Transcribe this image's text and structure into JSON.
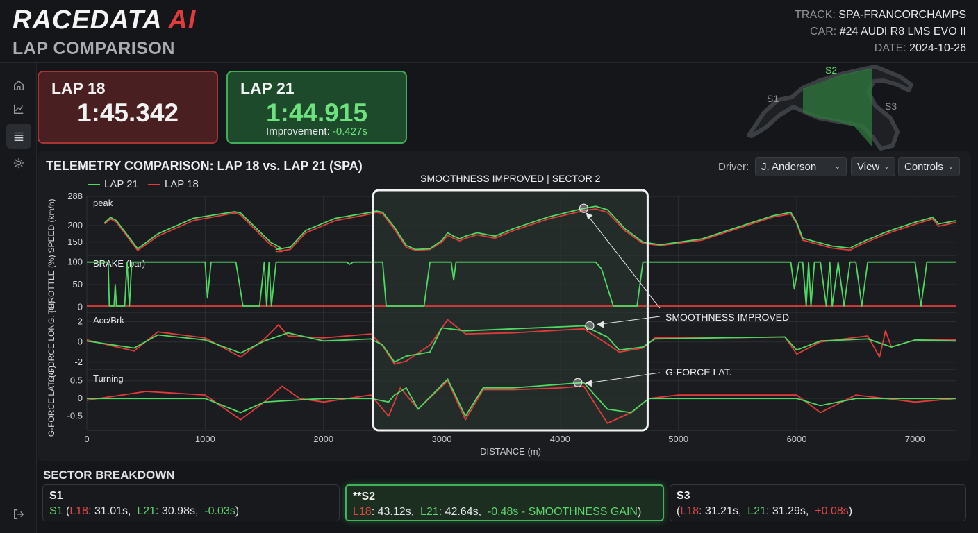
{
  "app": {
    "brand_main": "RACEDATA",
    "brand_accent": "AI",
    "page_title": "LAP COMPARISON"
  },
  "meta": {
    "track_label": "TRACK:",
    "track": "SPA-FRANCORCHAMPS",
    "car_label": "CAR:",
    "car": "#24 AUDI R8 LMS EVO II",
    "date_label": "DATE:",
    "date": "2024-10-26"
  },
  "sidebar": {
    "items": [
      {
        "icon": "home-icon"
      },
      {
        "icon": "chart-icon"
      },
      {
        "icon": "list-icon",
        "active": true
      },
      {
        "icon": "gear-icon"
      },
      {
        "icon": "logout-icon"
      }
    ]
  },
  "laps": {
    "a": {
      "label": "LAP 18",
      "time": "1:45.342"
    },
    "b": {
      "label": "LAP 21",
      "time": "1:44.915",
      "improvement_label": "Improvement:",
      "improvement": "-0.427s"
    }
  },
  "track_map": {
    "s1": "S1",
    "s2": "S2",
    "s3": "S3"
  },
  "telemetry": {
    "title": "TELEMETRY COMPARISON: LAP 18 vs. LAP 21 (SPA)",
    "driver_label": "Driver:",
    "driver": "J. Anderson",
    "view_label": "View",
    "controls_label": "Controls",
    "highlight_title": "SMOOTHNESS IMPROVED | SECTOR 2",
    "annot_smooth": "SMOOTHNESS IMPROVED",
    "annot_glat": "G-FORCE LAT."
  },
  "chart_data": {
    "type": "line",
    "xlabel": "DISTANCE (m)",
    "xlim": [
      0,
      7350
    ],
    "xticks": [
      0,
      1000,
      2000,
      3000,
      4000,
      5000,
      6000,
      7000
    ],
    "highlight_x": [
      2420,
      4740
    ],
    "legend": [
      "LAP 21",
      "LAP 18"
    ],
    "colors": {
      "lap21": "#4fd862",
      "lap18": "#e23b3b"
    },
    "panels": [
      {
        "ylabel": "SPEED (km/h)",
        "tag": "peak",
        "ylim": [
          110,
          288
        ],
        "yticks": [
          150,
          200,
          288
        ],
        "lap21": [
          [
            150,
            208
          ],
          [
            200,
            225
          ],
          [
            250,
            215
          ],
          [
            430,
            130
          ],
          [
            600,
            175
          ],
          [
            900,
            222
          ],
          [
            1250,
            242
          ],
          [
            1300,
            238
          ],
          [
            1500,
            168
          ],
          [
            1560,
            148
          ],
          [
            1580,
            145
          ],
          [
            1650,
            130
          ],
          [
            1600,
            128
          ],
          [
            1720,
            135
          ],
          [
            1850,
            185
          ],
          [
            2100,
            222
          ],
          [
            2400,
            240
          ],
          [
            2450,
            244
          ],
          [
            2500,
            240
          ],
          [
            2600,
            195
          ],
          [
            2700,
            140
          ],
          [
            2780,
            128
          ],
          [
            2900,
            130
          ],
          [
            3000,
            155
          ],
          [
            3050,
            178
          ],
          [
            3100,
            168
          ],
          [
            3150,
            160
          ],
          [
            3200,
            168
          ],
          [
            3300,
            178
          ],
          [
            3450,
            168
          ],
          [
            3600,
            190
          ],
          [
            3900,
            226
          ],
          [
            4200,
            252
          ],
          [
            4300,
            258
          ],
          [
            4400,
            248
          ],
          [
            4550,
            190
          ],
          [
            4700,
            150
          ],
          [
            4850,
            142
          ],
          [
            5200,
            160
          ],
          [
            5800,
            230
          ],
          [
            5950,
            240
          ],
          [
            6000,
            210
          ],
          [
            6050,
            162
          ],
          [
            6300,
            138
          ],
          [
            6450,
            132
          ],
          [
            6550,
            150
          ],
          [
            6750,
            180
          ],
          [
            7000,
            210
          ],
          [
            7150,
            225
          ],
          [
            7200,
            205
          ],
          [
            7350,
            215
          ]
        ],
        "lap18": [
          [
            150,
            205
          ],
          [
            200,
            220
          ],
          [
            250,
            210
          ],
          [
            430,
            125
          ],
          [
            600,
            168
          ],
          [
            900,
            215
          ],
          [
            1250,
            238
          ],
          [
            1300,
            232
          ],
          [
            1500,
            160
          ],
          [
            1560,
            140
          ],
          [
            1580,
            138
          ],
          [
            1650,
            122
          ],
          [
            1600,
            122
          ],
          [
            1720,
            128
          ],
          [
            1850,
            178
          ],
          [
            2100,
            215
          ],
          [
            2400,
            235
          ],
          [
            2450,
            240
          ],
          [
            2500,
            236
          ],
          [
            2600,
            188
          ],
          [
            2700,
            134
          ],
          [
            2780,
            125
          ],
          [
            2900,
            128
          ],
          [
            3000,
            150
          ],
          [
            3050,
            170
          ],
          [
            3100,
            162
          ],
          [
            3150,
            154
          ],
          [
            3200,
            162
          ],
          [
            3300,
            172
          ],
          [
            3450,
            162
          ],
          [
            3600,
            184
          ],
          [
            3900,
            220
          ],
          [
            4200,
            245
          ],
          [
            4300,
            250
          ],
          [
            4400,
            240
          ],
          [
            4550,
            184
          ],
          [
            4700,
            146
          ],
          [
            4850,
            140
          ],
          [
            5200,
            156
          ],
          [
            5800,
            226
          ],
          [
            5950,
            235
          ],
          [
            6000,
            205
          ],
          [
            6050,
            156
          ],
          [
            6300,
            132
          ],
          [
            6450,
            126
          ],
          [
            6550,
            144
          ],
          [
            6750,
            174
          ],
          [
            7000,
            204
          ],
          [
            7150,
            220
          ],
          [
            7200,
            198
          ],
          [
            7350,
            210
          ]
        ]
      },
      {
        "ylabel": "THROTTLE (%)",
        "tag": "BRAKE (bar)",
        "ylim": [
          -12,
          112
        ],
        "yticks": [
          0,
          50,
          100
        ],
        "lap21": [
          [
            0,
            100
          ],
          [
            180,
            100
          ],
          [
            190,
            2
          ],
          [
            230,
            2
          ],
          [
            240,
            50
          ],
          [
            250,
            2
          ],
          [
            320,
            2
          ],
          [
            340,
            100
          ],
          [
            360,
            2
          ],
          [
            380,
            100
          ],
          [
            1000,
            100
          ],
          [
            1020,
            20
          ],
          [
            1050,
            100
          ],
          [
            1260,
            100
          ],
          [
            1320,
            2
          ],
          [
            1460,
            2
          ],
          [
            1500,
            100
          ],
          [
            1520,
            2
          ],
          [
            1540,
            100
          ],
          [
            1560,
            2
          ],
          [
            1600,
            100
          ],
          [
            2200,
            100
          ],
          [
            2220,
            95
          ],
          [
            2250,
            100
          ],
          [
            2500,
            100
          ],
          [
            2530,
            2
          ],
          [
            2850,
            2
          ],
          [
            2900,
            100
          ],
          [
            3080,
            100
          ],
          [
            3100,
            60
          ],
          [
            3120,
            100
          ],
          [
            4300,
            100
          ],
          [
            4350,
            85
          ],
          [
            4450,
            2
          ],
          [
            4650,
            2
          ],
          [
            4700,
            100
          ],
          [
            5950,
            100
          ],
          [
            5980,
            40
          ],
          [
            6020,
            100
          ],
          [
            6050,
            100
          ],
          [
            6080,
            2
          ],
          [
            6100,
            100
          ],
          [
            6120,
            2
          ],
          [
            6150,
            100
          ],
          [
            6200,
            100
          ],
          [
            6250,
            2
          ],
          [
            6280,
            100
          ],
          [
            6300,
            2
          ],
          [
            6350,
            100
          ],
          [
            6400,
            2
          ],
          [
            6450,
            100
          ],
          [
            6500,
            100
          ],
          [
            6550,
            2
          ],
          [
            6600,
            100
          ],
          [
            7000,
            100
          ],
          [
            7050,
            2
          ],
          [
            7100,
            100
          ],
          [
            7350,
            100
          ]
        ],
        "lap18": [
          [
            0,
            2
          ],
          [
            7350,
            2
          ]
        ]
      },
      {
        "ylabel": "G-FORCE LONG. (G)",
        "tag": "Acc/Brk",
        "ylim": [
          -2.7,
          2.8
        ],
        "yticks": [
          -2,
          0,
          2
        ],
        "lap21": [
          [
            0,
            0.1
          ],
          [
            400,
            -0.6
          ],
          [
            600,
            0.7
          ],
          [
            1000,
            0.2
          ],
          [
            1300,
            -1.1
          ],
          [
            1500,
            0.1
          ],
          [
            1700,
            0.9
          ],
          [
            2000,
            0.1
          ],
          [
            2400,
            0.3
          ],
          [
            2500,
            -0.3
          ],
          [
            2600,
            -2.0
          ],
          [
            2700,
            -1.4
          ],
          [
            2900,
            -1.0
          ],
          [
            3000,
            1.4
          ],
          [
            3200,
            1.1
          ],
          [
            3600,
            1.3
          ],
          [
            4200,
            1.6
          ],
          [
            4400,
            0.5
          ],
          [
            4500,
            -0.8
          ],
          [
            4700,
            -0.5
          ],
          [
            4800,
            0.3
          ],
          [
            5300,
            0.4
          ],
          [
            5900,
            0.5
          ],
          [
            6000,
            -0.8
          ],
          [
            6200,
            0.1
          ],
          [
            6600,
            0.3
          ],
          [
            6800,
            -0.5
          ],
          [
            7000,
            0.2
          ],
          [
            7350,
            0.1
          ]
        ],
        "lap18": [
          [
            0,
            0.2
          ],
          [
            400,
            -0.9
          ],
          [
            600,
            1.0
          ],
          [
            1000,
            0.4
          ],
          [
            1300,
            -1.5
          ],
          [
            1500,
            0.3
          ],
          [
            1620,
            1.7
          ],
          [
            1700,
            0.6
          ],
          [
            2000,
            0.4
          ],
          [
            2400,
            0.8
          ],
          [
            2500,
            -0.4
          ],
          [
            2600,
            -2.2
          ],
          [
            2700,
            -1.9
          ],
          [
            2900,
            -0.3
          ],
          [
            3050,
            2.2
          ],
          [
            3200,
            0.8
          ],
          [
            3600,
            0.9
          ],
          [
            4200,
            1.3
          ],
          [
            4400,
            -0.2
          ],
          [
            4500,
            -1.0
          ],
          [
            4700,
            -0.6
          ],
          [
            4800,
            0.4
          ],
          [
            5300,
            0.4
          ],
          [
            5900,
            0.5
          ],
          [
            6000,
            -1.2
          ],
          [
            6200,
            0.0
          ],
          [
            6600,
            0.6
          ],
          [
            6700,
            -1.5
          ],
          [
            6750,
            1.1
          ],
          [
            6800,
            -0.5
          ],
          [
            7000,
            0.2
          ],
          [
            7350,
            0.2
          ]
        ]
      },
      {
        "ylabel": "G-FORCE LAT. (G)",
        "tag": "Turning",
        "ylim": [
          -0.9,
          0.75
        ],
        "yticks": [
          -0.5,
          0.0,
          0.5
        ],
        "lap21": [
          [
            0,
            0.0
          ],
          [
            500,
            0.0
          ],
          [
            1000,
            0.0
          ],
          [
            1300,
            -0.4
          ],
          [
            1500,
            -0.1
          ],
          [
            2000,
            0.0
          ],
          [
            2400,
            0.0
          ],
          [
            2550,
            -0.1
          ],
          [
            2600,
            0.1
          ],
          [
            2700,
            0.3
          ],
          [
            2800,
            -0.3
          ],
          [
            3050,
            0.55
          ],
          [
            3200,
            -0.5
          ],
          [
            3350,
            0.3
          ],
          [
            3600,
            0.3
          ],
          [
            4000,
            0.4
          ],
          [
            4200,
            0.45
          ],
          [
            4400,
            -0.3
          ],
          [
            4600,
            -0.4
          ],
          [
            4750,
            0.0
          ],
          [
            5000,
            0.0
          ],
          [
            6000,
            0.0
          ],
          [
            6200,
            -0.2
          ],
          [
            6500,
            0.0
          ],
          [
            7000,
            0.0
          ],
          [
            7350,
            0.0
          ]
        ],
        "lap18": [
          [
            0,
            -0.05
          ],
          [
            500,
            0.2
          ],
          [
            1000,
            0.1
          ],
          [
            1300,
            -0.6
          ],
          [
            1500,
            -0.1
          ],
          [
            1650,
            0.35
          ],
          [
            1800,
            0.0
          ],
          [
            2000,
            -0.1
          ],
          [
            2400,
            0.1
          ],
          [
            2550,
            -0.5
          ],
          [
            2650,
            0.3
          ],
          [
            2800,
            -0.3
          ],
          [
            3050,
            0.5
          ],
          [
            3200,
            -0.6
          ],
          [
            3350,
            0.25
          ],
          [
            3600,
            0.25
          ],
          [
            4000,
            0.3
          ],
          [
            4200,
            0.35
          ],
          [
            4400,
            -0.7
          ],
          [
            4600,
            -0.4
          ],
          [
            4750,
            0.0
          ],
          [
            5000,
            0.1
          ],
          [
            6000,
            0.1
          ],
          [
            6200,
            -0.4
          ],
          [
            6500,
            0.1
          ],
          [
            7000,
            -0.1
          ],
          [
            7350,
            0.0
          ]
        ]
      }
    ]
  },
  "sectors": {
    "title": "SECTOR BREAKDOWN",
    "s1": {
      "name": "S1",
      "tag": "S1",
      "l18_label": "L18",
      "l18": ": 31.01s,",
      "l21_label": "L21",
      "l21": ": 30.98s,",
      "delta": "-0.03s",
      "close": ")",
      "open": " ("
    },
    "s2": {
      "name": "**S2",
      "l18_label": "L18",
      "l18": ": 43.12s,",
      "l21_label": "L21",
      "l21": ": 42.64s,",
      "delta": "-0.48s - SMOOTHNESS GAIN",
      "close": ")"
    },
    "s3": {
      "name": "S3",
      "open": "(",
      "l18_label": "L18",
      "l18": ": 31.21s,",
      "l21_label": "L21",
      "l21": ": 31.29s,",
      "delta": "+0.08s",
      "close": ")"
    }
  }
}
